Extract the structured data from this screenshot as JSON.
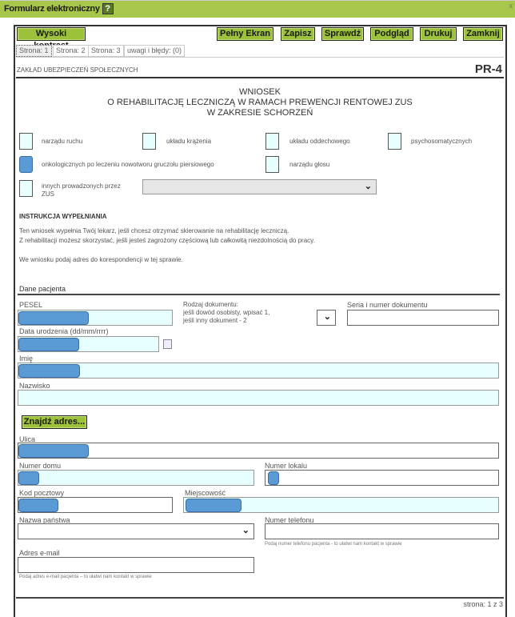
{
  "window": {
    "title": "Formularz elektroniczny",
    "help": "?",
    "close": "x"
  },
  "toolbar": {
    "high_contrast": "Wysoki kontrast",
    "fullscreen": "Pełny Ekran",
    "save": "Zapisz",
    "check": "Sprawdź",
    "preview": "Podgląd",
    "print": "Drukuj",
    "close": "Zamknij"
  },
  "tabs": [
    "Strona: 1",
    "Strona: 2",
    "Strona: 3",
    "uwagi i błędy: (0)"
  ],
  "header": {
    "org": "ZAKŁAD UBEZPIECZEŃ SPOŁECZNYCH",
    "code": "PR-4"
  },
  "title": {
    "line1": "WNIOSEK",
    "line2": "O REHABILITACJĘ LECZNICZĄ W RAMACH PREWENCJI RENTOWEJ ZUS",
    "line3": "W ZAKRESIE SCHORZEŃ"
  },
  "conditions": [
    {
      "label": "narządu ruchu",
      "checked": false
    },
    {
      "label": "układu krążenia",
      "checked": false
    },
    {
      "label": "układu oddechowego",
      "checked": false
    },
    {
      "label": "psychosomatycznych",
      "checked": false
    },
    {
      "label": "onkologicznych po leczeniu nowotworu gruczołu piersiowego",
      "checked": true
    },
    {
      "label": "narządu głosu",
      "checked": false
    },
    {
      "label": "innych prowadzonych przez ZUS",
      "checked": false
    }
  ],
  "instructions": {
    "heading": "INSTRUKCJA WYPEŁNIANIA",
    "p1": "Ten wniosek wypełnia Twój lekarz, jeśli chcesz otrzymać skierowanie na rehabilitację leczniczą.",
    "p2": "Z rehabilitacji możesz skorzystać, jeśli jesteś zagrożony częściową lub całkowitą niezdolnością do pracy.",
    "p3": "We wniosku podaj adres do korespondencji w tej sprawie."
  },
  "patient": {
    "section": "Dane pacjenta",
    "pesel": "PESEL",
    "doc_type": "Rodzaj dokumentu:",
    "doc_hint1": "jeśli dowód osobisty, wpisać 1,",
    "doc_hint2": "jeśli inny dokument - 2",
    "doc_number": "Seria i numer dokumentu",
    "birth_date": "Data urodzenia (dd/mm/rrrr)",
    "first_name": "Imię",
    "last_name": "Nazwisko",
    "find_address": "Znajdź adres...",
    "street": "Ulica",
    "house_no": "Numer domu",
    "flat_no": "Numer lokalu",
    "postal": "Kod pocztowy",
    "city": "Miejscowość",
    "country": "Nazwa państwa",
    "phone": "Numer telefonu",
    "phone_hint": "Podaj numer telefonu pacjenta - to ułatwi nam kontakt w sprawie",
    "email": "Adres e-mail",
    "email_hint": "Podaj adres e-mail pacjenta – to ułatwi nam kontakt w sprawie"
  },
  "footer": {
    "page": "strona: 1 z 3"
  },
  "colors": {
    "accent": "#a8c64a",
    "filled": "#5b9bd5",
    "required": "#e8ffff"
  }
}
